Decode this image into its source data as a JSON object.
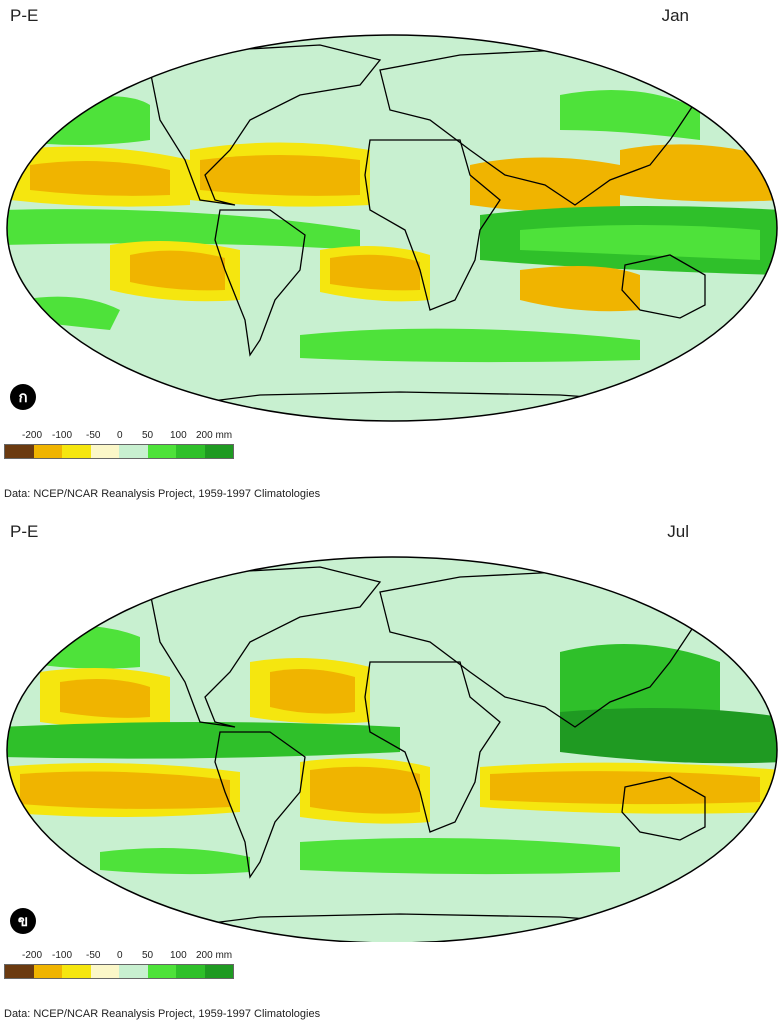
{
  "legend": {
    "ticks": [
      "-200",
      "-100",
      "-50",
      "0",
      "50",
      "100",
      "200 mm"
    ],
    "colors": [
      "#6b3a10",
      "#f0b400",
      "#f5e60f",
      "#fbf7c8",
      "#c8f0d0",
      "#4ee23a",
      "#2fc02a",
      "#1f9a22"
    ]
  },
  "panels": [
    {
      "title": "P-E",
      "month": "Jan",
      "badge": "ก",
      "credit": "Data:  NCEP/NCAR Reanalysis Project, 1959-1997 Climatologies"
    },
    {
      "title": "P-E",
      "month": "Jul",
      "badge": "ข",
      "credit": "Data:  NCEP/NCAR Reanalysis Project, 1959-1997 Climatologies"
    }
  ],
  "map_colors": {
    "ocean": "#fbf7c8",
    "light_green": "#c8f0d0",
    "green": "#4ee23a",
    "dark_green": "#2fc02a",
    "darker_green": "#1f9a22",
    "yellow": "#f5e60f",
    "orange": "#f0b400",
    "brown": "#6b3a10",
    "coast": "#000000"
  }
}
